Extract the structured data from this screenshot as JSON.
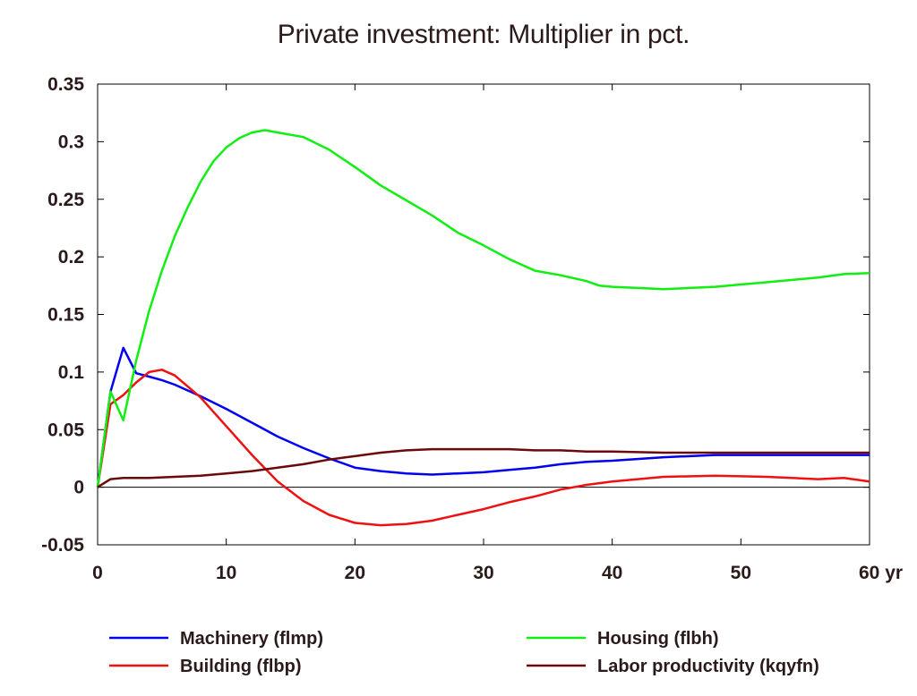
{
  "chart_data": {
    "type": "line",
    "title": "Private investment: Multiplier in pct.",
    "x_unit_label": "yr",
    "xlim": [
      0,
      60
    ],
    "ylim": [
      -0.05,
      0.35
    ],
    "x_ticks": [
      0,
      10,
      20,
      30,
      40,
      50,
      60
    ],
    "x_tick_labels": [
      "0",
      "10",
      "20",
      "30",
      "40",
      "50",
      "60 yr"
    ],
    "y_ticks": [
      -0.05,
      0,
      0.05,
      0.1,
      0.15,
      0.2,
      0.25,
      0.3,
      0.35
    ],
    "y_tick_labels": [
      "-0.05",
      "0",
      "0.05",
      "0.1",
      "0.15",
      "0.2",
      "0.25",
      "0.3",
      "0.35"
    ],
    "zero_line": true,
    "grid": false,
    "legend_position": "bottom",
    "series": [
      {
        "name": "Machinery (flmp)",
        "color": "#0000ee",
        "x": [
          0,
          1,
          2,
          3,
          4,
          5,
          6,
          8,
          10,
          12,
          14,
          16,
          18,
          20,
          22,
          24,
          26,
          28,
          30,
          32,
          34,
          36,
          38,
          40,
          44,
          48,
          52,
          56,
          60
        ],
        "y": [
          0,
          0.083,
          0.121,
          0.099,
          0.096,
          0.093,
          0.089,
          0.079,
          0.068,
          0.056,
          0.044,
          0.034,
          0.025,
          0.017,
          0.014,
          0.012,
          0.011,
          0.012,
          0.013,
          0.015,
          0.017,
          0.02,
          0.022,
          0.023,
          0.026,
          0.028,
          0.028,
          0.028,
          0.028
        ]
      },
      {
        "name": "Building (flbp)",
        "color": "#ee1111",
        "x": [
          0,
          1,
          2,
          3,
          4,
          5,
          6,
          8,
          10,
          12,
          14,
          16,
          18,
          20,
          22,
          24,
          26,
          28,
          30,
          32,
          34,
          36,
          38,
          40,
          44,
          48,
          52,
          56,
          58,
          60
        ],
        "y": [
          0,
          0.072,
          0.08,
          0.091,
          0.1,
          0.102,
          0.097,
          0.078,
          0.053,
          0.028,
          0.005,
          -0.012,
          -0.024,
          -0.031,
          -0.033,
          -0.032,
          -0.029,
          -0.024,
          -0.019,
          -0.013,
          -0.008,
          -0.002,
          0.002,
          0.005,
          0.009,
          0.01,
          0.009,
          0.007,
          0.008,
          0.005
        ]
      },
      {
        "name": "Housing (flbh)",
        "color": "#11ee11",
        "x": [
          0,
          1,
          2,
          3,
          4,
          5,
          6,
          7,
          8,
          9,
          10,
          11,
          12,
          13,
          14,
          16,
          18,
          20,
          22,
          24,
          26,
          28,
          30,
          32,
          34,
          36,
          38,
          39,
          40,
          42,
          44,
          46,
          48,
          50,
          52,
          54,
          56,
          58,
          60
        ],
        "y": [
          0,
          0.083,
          0.058,
          0.11,
          0.153,
          0.188,
          0.218,
          0.243,
          0.265,
          0.283,
          0.295,
          0.303,
          0.308,
          0.31,
          0.308,
          0.304,
          0.293,
          0.278,
          0.262,
          0.249,
          0.236,
          0.221,
          0.21,
          0.198,
          0.188,
          0.184,
          0.179,
          0.175,
          0.174,
          0.173,
          0.172,
          0.173,
          0.174,
          0.176,
          0.178,
          0.18,
          0.182,
          0.185,
          0.186
        ]
      },
      {
        "name": "Labor productivity (kqyfn)",
        "color": "#6a0a0a",
        "x": [
          0,
          1,
          2,
          4,
          6,
          8,
          10,
          12,
          14,
          16,
          18,
          20,
          22,
          24,
          26,
          28,
          30,
          32,
          34,
          36,
          38,
          40,
          44,
          48,
          52,
          56,
          60
        ],
        "y": [
          0,
          0.007,
          0.008,
          0.008,
          0.009,
          0.01,
          0.012,
          0.014,
          0.017,
          0.02,
          0.024,
          0.027,
          0.03,
          0.032,
          0.033,
          0.033,
          0.033,
          0.033,
          0.032,
          0.032,
          0.031,
          0.031,
          0.03,
          0.03,
          0.03,
          0.03,
          0.03
        ]
      }
    ]
  }
}
